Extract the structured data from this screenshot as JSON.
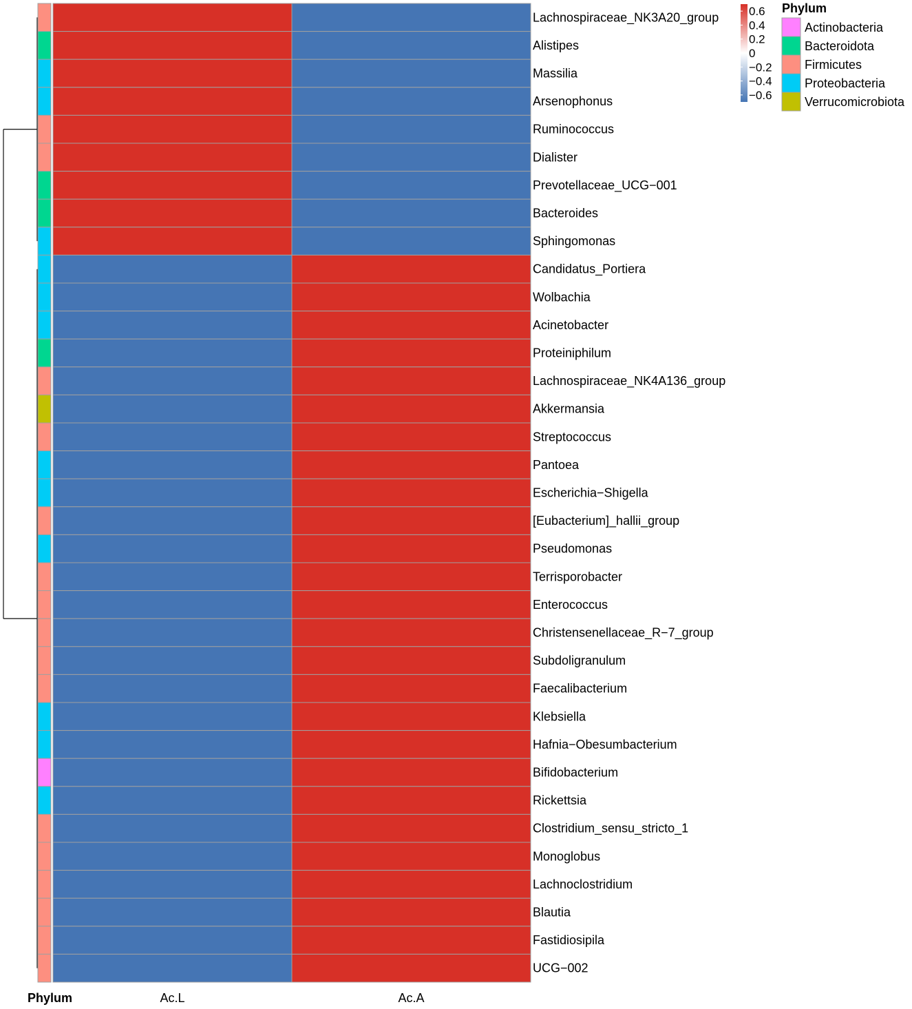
{
  "chart_data": {
    "type": "heatmap",
    "columns": [
      "Ac.L",
      "Ac.A"
    ],
    "annotation_label": "Phylum",
    "rows": [
      {
        "taxon": "Lachnospiraceae_NK3A20_group",
        "phylum": "Firmicutes",
        "values": [
          0.7,
          -0.7
        ]
      },
      {
        "taxon": "Alistipes",
        "phylum": "Bacteroidota",
        "values": [
          0.7,
          -0.7
        ]
      },
      {
        "taxon": "Massilia",
        "phylum": "Proteobacteria",
        "values": [
          0.7,
          -0.7
        ]
      },
      {
        "taxon": "Arsenophonus",
        "phylum": "Proteobacteria",
        "values": [
          0.7,
          -0.7
        ]
      },
      {
        "taxon": "Ruminococcus",
        "phylum": "Firmicutes",
        "values": [
          0.7,
          -0.7
        ]
      },
      {
        "taxon": "Dialister",
        "phylum": "Firmicutes",
        "values": [
          0.7,
          -0.7
        ]
      },
      {
        "taxon": "Prevotellaceae_UCG−001",
        "phylum": "Bacteroidota",
        "values": [
          0.7,
          -0.7
        ]
      },
      {
        "taxon": "Bacteroides",
        "phylum": "Bacteroidota",
        "values": [
          0.7,
          -0.7
        ]
      },
      {
        "taxon": "Sphingomonas",
        "phylum": "Proteobacteria",
        "values": [
          0.7,
          -0.7
        ]
      },
      {
        "taxon": "Candidatus_Portiera",
        "phylum": "Proteobacteria",
        "values": [
          -0.7,
          0.7
        ]
      },
      {
        "taxon": "Wolbachia",
        "phylum": "Proteobacteria",
        "values": [
          -0.7,
          0.7
        ]
      },
      {
        "taxon": "Acinetobacter",
        "phylum": "Proteobacteria",
        "values": [
          -0.7,
          0.7
        ]
      },
      {
        "taxon": "Proteiniphilum",
        "phylum": "Bacteroidota",
        "values": [
          -0.7,
          0.7
        ]
      },
      {
        "taxon": "Lachnospiraceae_NK4A136_group",
        "phylum": "Firmicutes",
        "values": [
          -0.7,
          0.7
        ]
      },
      {
        "taxon": "Akkermansia",
        "phylum": "Verrucomicrobiota",
        "values": [
          -0.7,
          0.7
        ]
      },
      {
        "taxon": "Streptococcus",
        "phylum": "Firmicutes",
        "values": [
          -0.7,
          0.7
        ]
      },
      {
        "taxon": "Pantoea",
        "phylum": "Proteobacteria",
        "values": [
          -0.7,
          0.7
        ]
      },
      {
        "taxon": "Escherichia−Shigella",
        "phylum": "Proteobacteria",
        "values": [
          -0.7,
          0.7
        ]
      },
      {
        "taxon": "[Eubacterium]_hallii_group",
        "phylum": "Firmicutes",
        "values": [
          -0.7,
          0.7
        ]
      },
      {
        "taxon": "Pseudomonas",
        "phylum": "Proteobacteria",
        "values": [
          -0.7,
          0.7
        ]
      },
      {
        "taxon": "Terrisporobacter",
        "phylum": "Firmicutes",
        "values": [
          -0.7,
          0.7
        ]
      },
      {
        "taxon": "Enterococcus",
        "phylum": "Firmicutes",
        "values": [
          -0.7,
          0.7
        ]
      },
      {
        "taxon": "Christensenellaceae_R−7_group",
        "phylum": "Firmicutes",
        "values": [
          -0.7,
          0.7
        ]
      },
      {
        "taxon": "Subdoligranulum",
        "phylum": "Firmicutes",
        "values": [
          -0.7,
          0.7
        ]
      },
      {
        "taxon": "Faecalibacterium",
        "phylum": "Firmicutes",
        "values": [
          -0.7,
          0.7
        ]
      },
      {
        "taxon": "Klebsiella",
        "phylum": "Proteobacteria",
        "values": [
          -0.7,
          0.7
        ]
      },
      {
        "taxon": "Hafnia−Obesumbacterium",
        "phylum": "Proteobacteria",
        "values": [
          -0.7,
          0.7
        ]
      },
      {
        "taxon": "Bifidobacterium",
        "phylum": "Actinobacteria",
        "values": [
          -0.7,
          0.7
        ]
      },
      {
        "taxon": "Rickettsia",
        "phylum": "Proteobacteria",
        "values": [
          -0.7,
          0.7
        ]
      },
      {
        "taxon": "Clostridium_sensu_stricto_1",
        "phylum": "Firmicutes",
        "values": [
          -0.7,
          0.7
        ]
      },
      {
        "taxon": "Monoglobus",
        "phylum": "Firmicutes",
        "values": [
          -0.7,
          0.7
        ]
      },
      {
        "taxon": "Lachnoclostridium",
        "phylum": "Firmicutes",
        "values": [
          -0.7,
          0.7
        ]
      },
      {
        "taxon": "Blautia",
        "phylum": "Firmicutes",
        "values": [
          -0.7,
          0.7
        ]
      },
      {
        "taxon": "Fastidiosipila",
        "phylum": "Firmicutes",
        "values": [
          -0.7,
          0.7
        ]
      },
      {
        "taxon": "UCG−002",
        "phylum": "Firmicutes",
        "values": [
          -0.7,
          0.7
        ]
      }
    ],
    "color_scale": {
      "range": [
        -0.7,
        0.7
      ],
      "ticks": [
        0.6,
        0.4,
        0.2,
        0,
        -0.2,
        -0.4,
        -0.6
      ],
      "tick_labels": [
        "0.6",
        "0.4",
        "0.2",
        "0",
        "−0.2",
        "−0.4",
        "−0.6"
      ],
      "colors": [
        "#4575b4",
        "#ffffff",
        "#d73027"
      ]
    },
    "legend": {
      "title": "Phylum",
      "items": [
        {
          "label": "Actinobacteria",
          "color": "#ff80ff"
        },
        {
          "label": "Bacteroidota",
          "color": "#00d690"
        },
        {
          "label": "Firmicutes",
          "color": "#fd8f80"
        },
        {
          "label": "Proteobacteria",
          "color": "#00ccf6"
        },
        {
          "label": "Verrucomicrobiota",
          "color": "#c1c002"
        }
      ]
    },
    "dendrogram": {
      "clusters": [
        [
          0,
          8
        ],
        [
          9,
          34
        ]
      ]
    }
  }
}
